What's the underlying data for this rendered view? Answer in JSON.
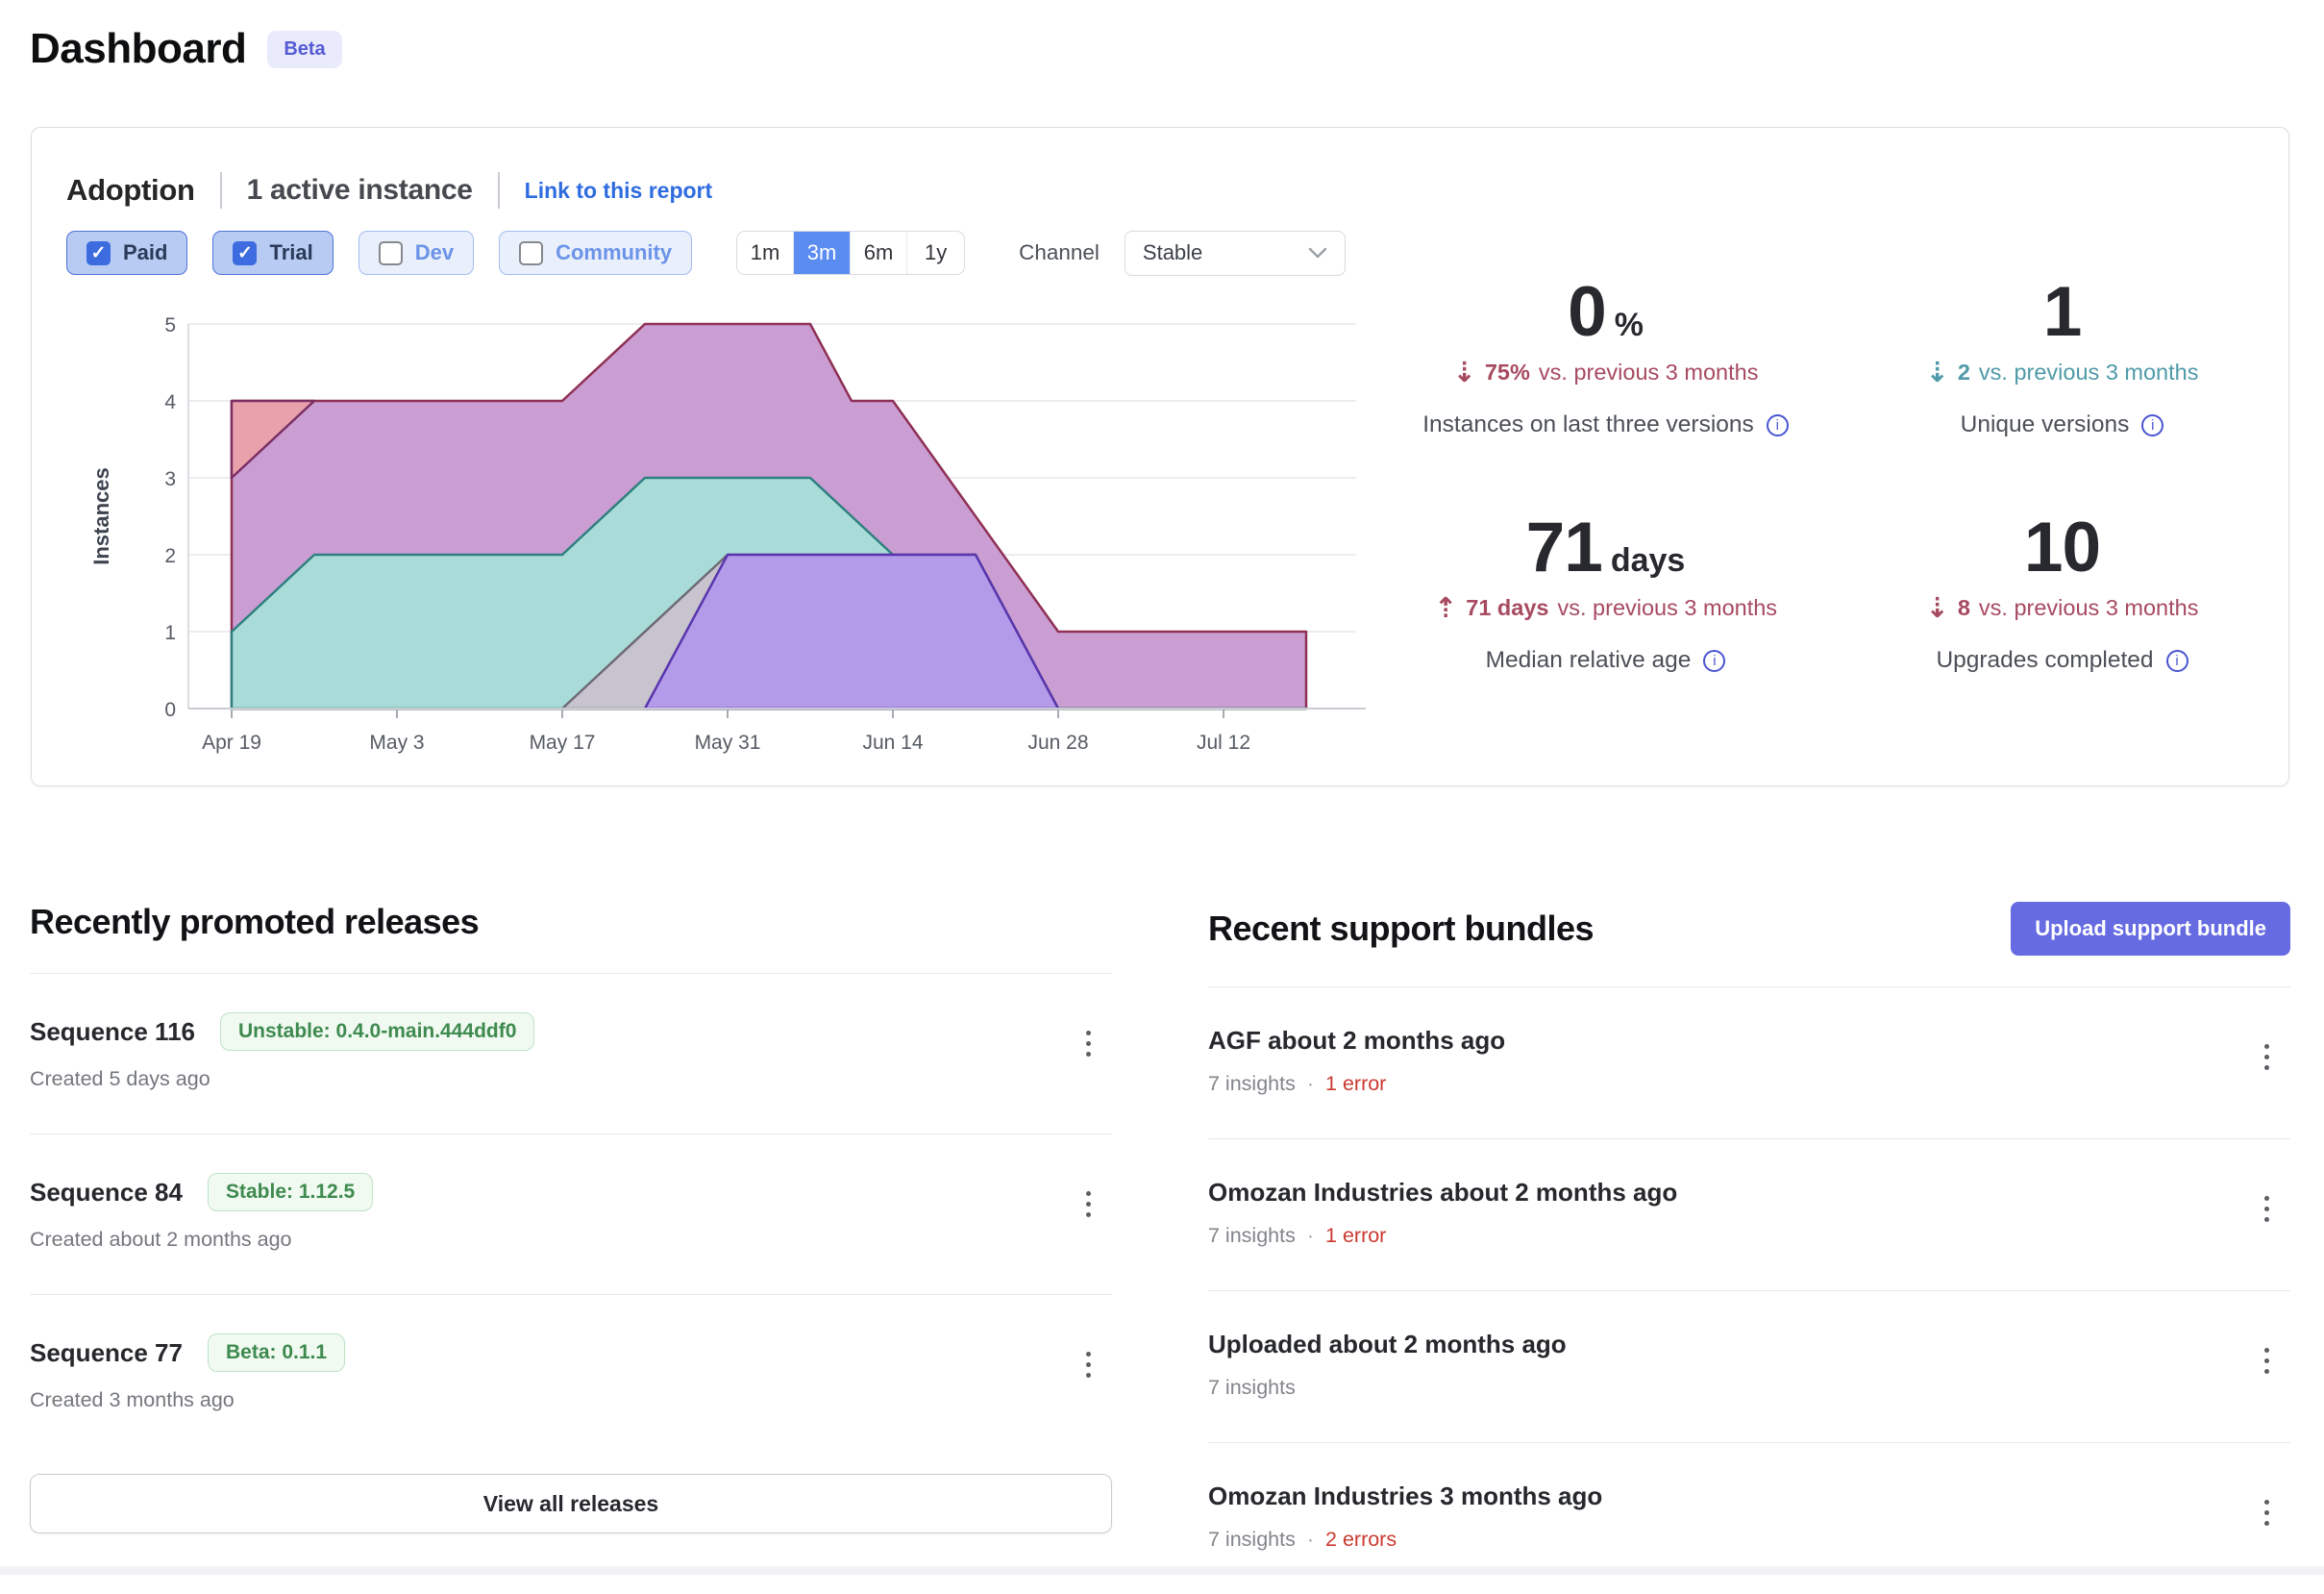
{
  "page": {
    "title": "Dashboard",
    "beta_badge": "Beta"
  },
  "icons": {
    "check_glyph": "✓",
    "arrow_up": "⇡",
    "arrow_down": "⇣",
    "dot": "·",
    "info_glyph": "i"
  },
  "colors": {
    "accent_blue": "#5b8cf0",
    "chip_selected_bg": "#b7cbf3",
    "link_blue": "#2e6ce0",
    "delta_bad_red": "#a74a60",
    "delta_good_teal": "#4f9aa8",
    "error_red": "#cb3a31",
    "badge_green": "#3e8a4f",
    "upload_button_indigo": "#666be2",
    "info_icon_indigo": "#4a55d2"
  },
  "adoption": {
    "title": "Adoption",
    "active_instances": "1 active instance",
    "link_label": "Link to this report",
    "filters": [
      {
        "label": "Paid",
        "checked": true
      },
      {
        "label": "Trial",
        "checked": true
      },
      {
        "label": "Dev",
        "checked": false
      },
      {
        "label": "Community",
        "checked": false
      }
    ],
    "ranges": [
      {
        "label": "1m",
        "selected": false
      },
      {
        "label": "3m",
        "selected": true
      },
      {
        "label": "6m",
        "selected": false
      },
      {
        "label": "1y",
        "selected": false
      }
    ],
    "channel_label": "Channel",
    "channel_value": "Stable",
    "stats": [
      {
        "value": "0",
        "suffix": "%",
        "direction": "down",
        "tone": "bad",
        "delta_value": "75%",
        "delta_text": "vs. previous 3 months",
        "label": "Instances on last three versions"
      },
      {
        "value": "1",
        "suffix": "",
        "direction": "down",
        "tone": "good",
        "delta_value": "2",
        "delta_text": "vs. previous 3 months",
        "label": "Unique versions"
      },
      {
        "value": "71",
        "suffix": "days",
        "direction": "up",
        "tone": "bad",
        "delta_value": "71 days",
        "delta_text": "vs. previous 3 months",
        "label": "Median relative age"
      },
      {
        "value": "10",
        "suffix": "",
        "direction": "down",
        "tone": "bad",
        "delta_value": "8",
        "delta_text": "vs. previous 3 months",
        "label": "Upgrades completed"
      }
    ]
  },
  "chart_data": {
    "type": "area",
    "title": "Instance adoption over time (stacked by version)",
    "ylabel": "Instances",
    "ylim": [
      0,
      5
    ],
    "grid": true,
    "legend": false,
    "y_ticks": [
      0,
      1,
      2,
      3,
      4,
      5
    ],
    "x_tick_labels": [
      "Apr 19",
      "May 3",
      "May 17",
      "May 31",
      "Jun 14",
      "Jun 28",
      "Jul 12"
    ],
    "x_tick_weeks": [
      0,
      2,
      4,
      6,
      8,
      10,
      12
    ],
    "week_dates": [
      "Apr 19",
      "Apr 26",
      "May 3",
      "May 10",
      "May 17",
      "May 24",
      "May 31",
      "Jun 7",
      "Jun 14",
      "Jun 21",
      "Jun 28",
      "Jul 5",
      "Jul 12",
      "Jul 19"
    ],
    "series": [
      {
        "name": "total-instances-band",
        "fill": "#cb9ed3",
        "stroke": "#8e3054",
        "close_to_zero": true,
        "points": [
          [
            0,
            4
          ],
          [
            4,
            4
          ],
          [
            5,
            5
          ],
          [
            7,
            5
          ],
          [
            7.5,
            4
          ],
          [
            8,
            4
          ],
          [
            10,
            1
          ],
          [
            13,
            1
          ]
        ]
      },
      {
        "name": "retired-version-band",
        "fill": "#e7a2ab",
        "stroke": "#7b2f63",
        "close_to_zero": false,
        "points": [
          [
            0,
            3
          ],
          [
            1,
            4
          ],
          [
            0,
            4
          ]
        ]
      },
      {
        "name": "teal-version-band",
        "fill": "#a9dcd8",
        "stroke": "#2f8080",
        "close_to_zero": true,
        "points": [
          [
            0,
            1
          ],
          [
            1,
            2
          ],
          [
            4,
            2
          ],
          [
            5,
            3
          ],
          [
            7,
            3
          ],
          [
            8,
            2
          ],
          [
            9,
            2
          ],
          [
            10,
            0
          ],
          [
            13,
            0
          ]
        ]
      },
      {
        "name": "gray-version-band",
        "fill": "#c7c4ce",
        "stroke": "#6e6a75",
        "close_to_zero": true,
        "points": [
          [
            4,
            0
          ],
          [
            6,
            2
          ],
          [
            9,
            2
          ],
          [
            10,
            0
          ]
        ]
      },
      {
        "name": "purple-version-band",
        "fill": "#b39bea",
        "stroke": "#5a35ad",
        "close_to_zero": true,
        "points": [
          [
            5,
            0
          ],
          [
            6,
            2
          ],
          [
            9,
            2
          ],
          [
            10,
            0
          ]
        ]
      }
    ]
  },
  "releases": {
    "heading": "Recently promoted releases",
    "view_all_label": "View all releases",
    "items": [
      {
        "title": "Sequence 116",
        "badge": "Unstable: 0.4.0-main.444ddf0",
        "created": "Created 5 days ago"
      },
      {
        "title": "Sequence 84",
        "badge": "Stable: 1.12.5",
        "created": "Created about 2 months ago"
      },
      {
        "title": "Sequence 77",
        "badge": "Beta: 0.1.1",
        "created": "Created 3 months ago"
      }
    ]
  },
  "bundles": {
    "heading": "Recent support bundles",
    "upload_label": "Upload support bundle",
    "items": [
      {
        "title": "AGF about 2 months ago",
        "insights": "7 insights",
        "errors": "1 error"
      },
      {
        "title": "Omozan Industries about 2 months ago",
        "insights": "7 insights",
        "errors": "1 error"
      },
      {
        "title": "Uploaded about 2 months ago",
        "insights": "7 insights",
        "errors": ""
      },
      {
        "title": "Omozan Industries 3 months ago",
        "insights": "7 insights",
        "errors": "2 errors"
      }
    ]
  }
}
